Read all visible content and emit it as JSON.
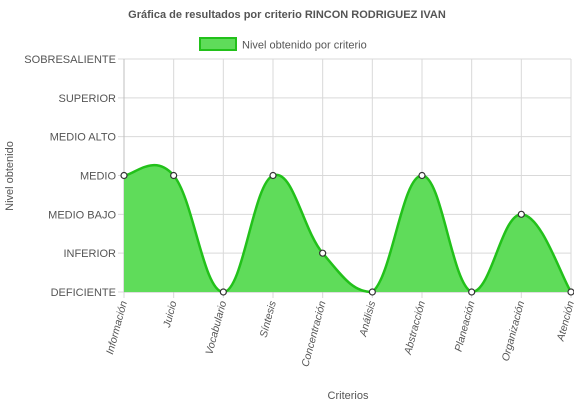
{
  "chart_data": {
    "type": "area",
    "title": "Gráfica de resultados por criterio RINCON RODRIGUEZ IVAN",
    "xlabel": "Criterios",
    "ylabel": "Nivel obtenido",
    "y_levels": [
      "DEFICIENTE",
      "INFERIOR",
      "MEDIO BAJO",
      "MEDIO",
      "MEDIO ALTO",
      "SUPERIOR",
      "SOBRESALIENTE"
    ],
    "ylim": [
      0,
      6
    ],
    "categories": [
      "Información",
      "Juicio",
      "Vocabulario",
      "Síntesis",
      "Concentración",
      "Análisis",
      "Abstracción",
      "Planeación",
      "Organización",
      "Atención"
    ],
    "series": [
      {
        "name": "Nivel obtenido por criterio",
        "values": [
          3,
          3,
          0,
          3,
          1,
          0,
          3,
          0,
          2,
          0
        ],
        "line_color": "#22c11a",
        "fill_color": "#5fdc5a"
      }
    ],
    "grid": true,
    "legend_position": "top"
  }
}
